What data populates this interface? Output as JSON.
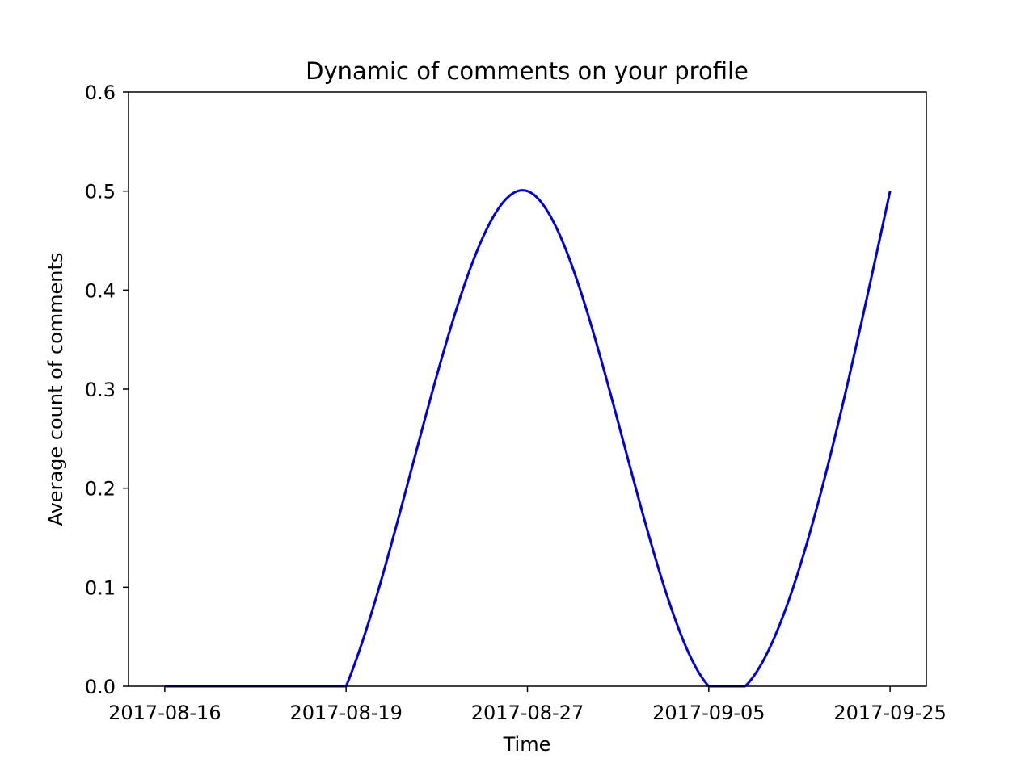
{
  "chart_data": {
    "type": "line",
    "title": "Dynamic of comments on your profile",
    "xlabel": "Time",
    "ylabel": "Average count of comments",
    "x_axis": "categorical",
    "categories": [
      "2017-08-16",
      "2017-08-19",
      "2017-08-27",
      "2017-09-05",
      "2017-09-25"
    ],
    "values": [
      0.0,
      0.0,
      0.5,
      0.0,
      0.5
    ],
    "ylim": [
      0,
      0.6
    ],
    "yticks": [
      0.0,
      0.1,
      0.2,
      0.3,
      0.4,
      0.5,
      0.6
    ],
    "ytick_labels": [
      "0.0",
      "0.1",
      "0.2",
      "0.3",
      "0.4",
      "0.5",
      "0.6"
    ],
    "line_color": "#0000dd",
    "interpolation": "cubic spline",
    "grid": false,
    "legend": "none"
  }
}
